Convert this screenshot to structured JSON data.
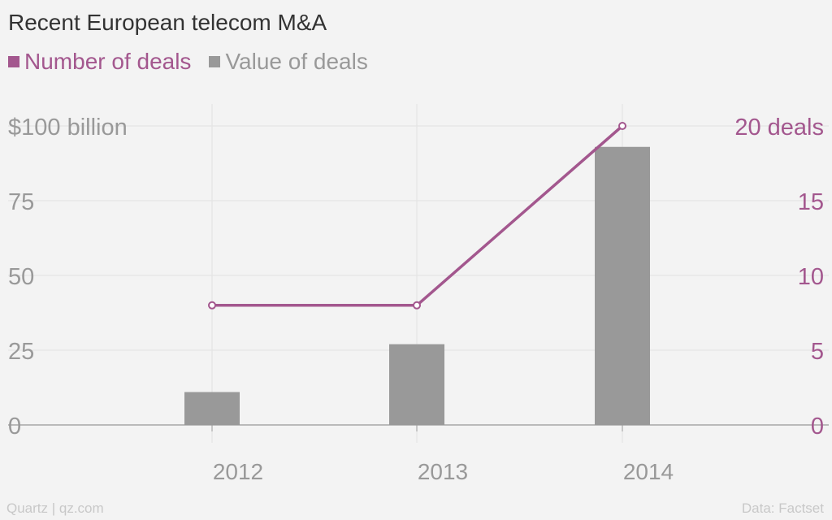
{
  "chart_data": {
    "type": "bar+line",
    "title": "Recent European telecom M&A",
    "categories": [
      "2012",
      "2013",
      "2014"
    ],
    "series": [
      {
        "name": "Value of deals",
        "type": "bar",
        "axis": "left",
        "color": "#999999",
        "values": [
          11,
          27,
          93
        ]
      },
      {
        "name": "Number of deals",
        "type": "line",
        "axis": "right",
        "color": "#a3578e",
        "values": [
          8,
          8,
          20
        ]
      }
    ],
    "left_axis": {
      "ylim": [
        0,
        100
      ],
      "ticks": [
        "0",
        "25",
        "50",
        "75",
        "$100 billion"
      ],
      "tick_values": [
        0,
        25,
        50,
        75,
        100
      ]
    },
    "right_axis": {
      "ylim": [
        0,
        20
      ],
      "ticks": [
        "0",
        "5",
        "10",
        "15",
        "20 deals"
      ],
      "tick_values": [
        0,
        5,
        10,
        15,
        20
      ]
    },
    "legend_position": "top-left",
    "grid": true
  },
  "legend": {
    "number_label": "Number of deals",
    "value_label": "Value of deals"
  },
  "footer": {
    "source_left": "Quartz | qz.com",
    "source_right": "Data: Factset"
  }
}
